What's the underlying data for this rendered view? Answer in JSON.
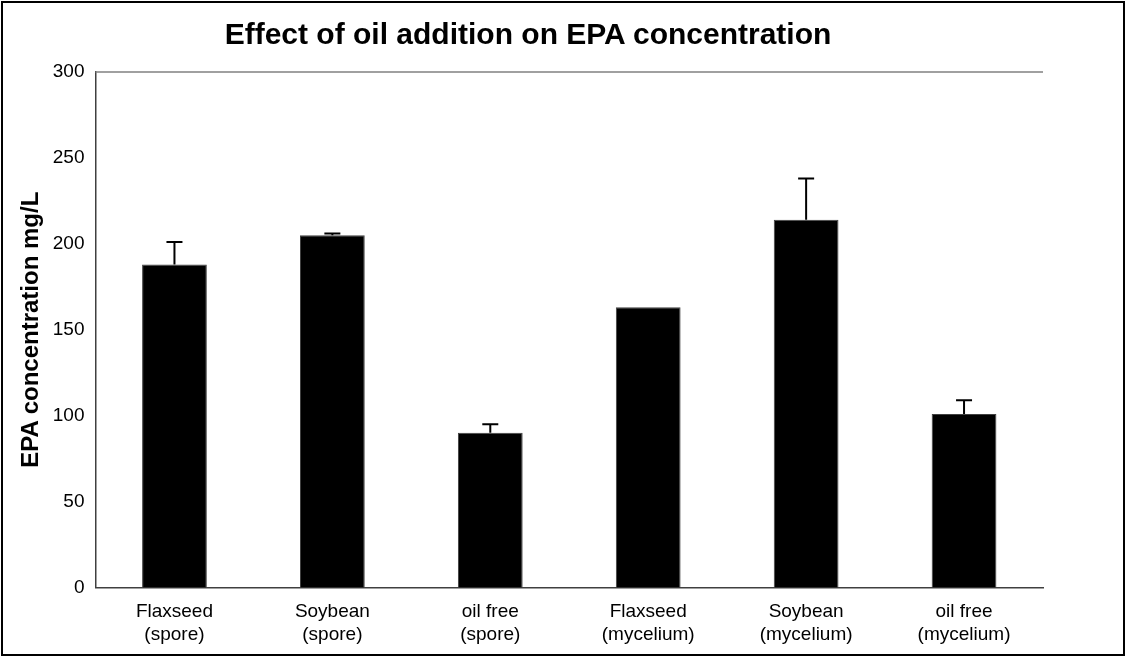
{
  "chart_data": {
    "type": "bar",
    "title": "Effect of oil addition on EPA concentration",
    "ylabel": "EPA concentration mg/L",
    "categories": [
      "Flaxseed\n(spore)",
      "Soybean\n(spore)",
      "oil free\n(spore)",
      "Flaxseed\n(mycelium)",
      "Soybean\n(mycelium)",
      "oil free\n(mycelium)"
    ],
    "values": [
      188,
      205,
      90,
      163,
      214,
      101
    ],
    "errors": [
      13,
      1,
      5,
      null,
      24,
      8
    ],
    "color": "#000000",
    "ylim": [
      0,
      300
    ],
    "yticks": [
      0,
      50,
      100,
      150,
      200,
      250,
      300
    ],
    "grid": false
  }
}
